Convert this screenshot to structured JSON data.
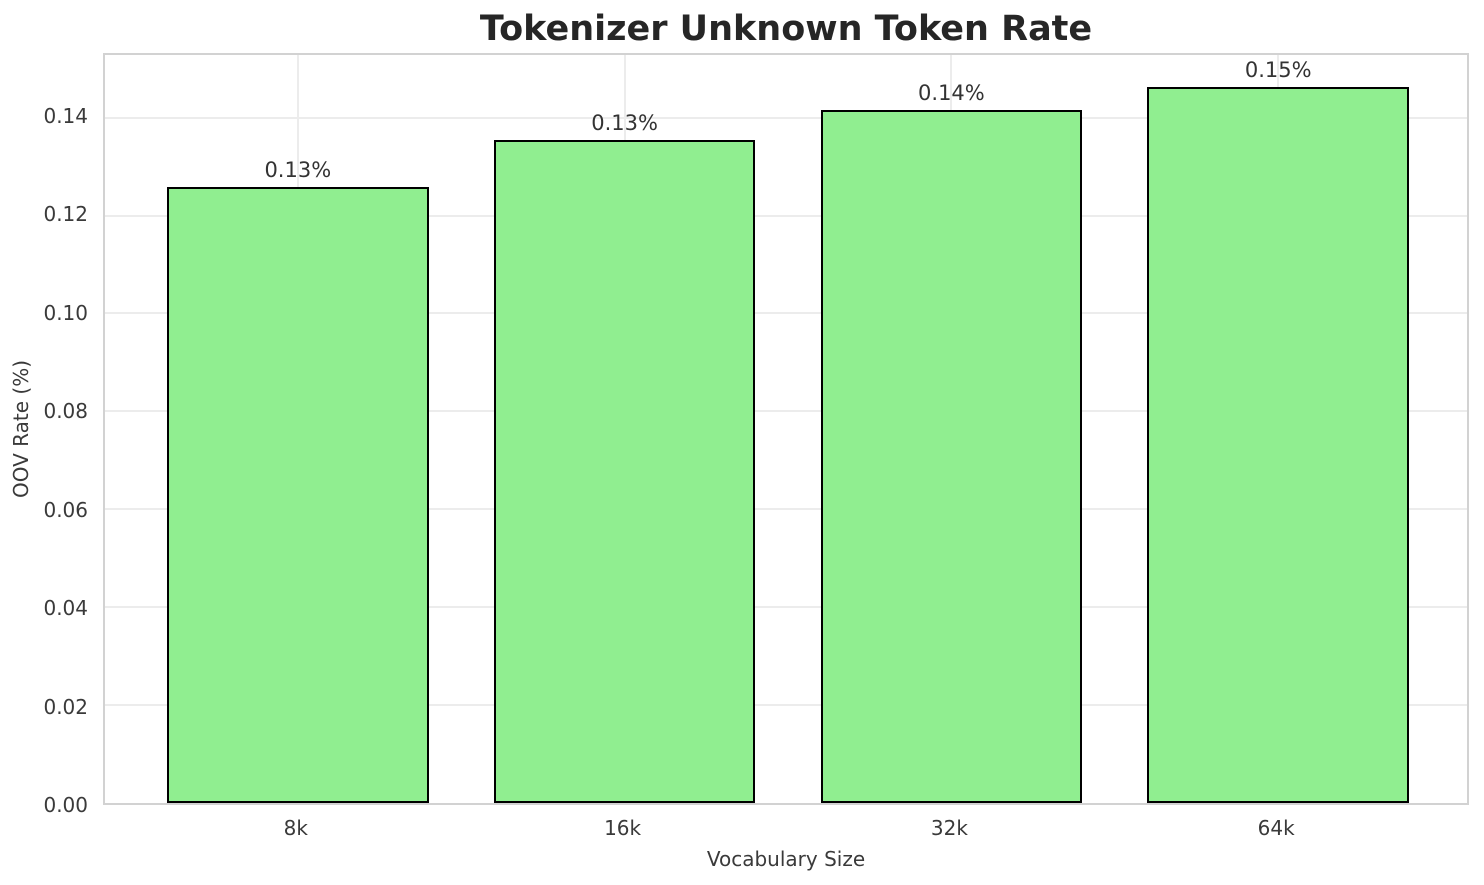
{
  "chart_data": {
    "type": "bar",
    "title": "Tokenizer Unknown Token Rate",
    "xlabel": "Vocabulary Size",
    "ylabel": "OOV Rate (%)",
    "categories": [
      "8k",
      "16k",
      "32k",
      "64k"
    ],
    "values": [
      0.1251,
      0.1347,
      0.1408,
      0.1455
    ],
    "bar_labels": [
      "0.13%",
      "0.13%",
      "0.14%",
      "0.15%"
    ],
    "ytick_labels": [
      "0.00",
      "0.02",
      "0.04",
      "0.06",
      "0.08",
      "0.10",
      "0.12",
      "0.14"
    ],
    "ytick_values": [
      0,
      0.02,
      0.04,
      0.06,
      0.08,
      0.1,
      0.12,
      0.14
    ],
    "ylim": [
      0,
      0.1528
    ],
    "xlim": [
      -0.59,
      3.59
    ],
    "bar_width": 0.8,
    "grid": true,
    "legend": "none",
    "colors": {
      "bar_fill": "#90EE90",
      "bar_edge": "#000000",
      "grid": "#ECECEC",
      "spine": "#D2D2D2",
      "tick_text": "#3A3A3A",
      "value_text": "#333333",
      "title_text": "#262626",
      "background": "#FFFFFF"
    }
  }
}
